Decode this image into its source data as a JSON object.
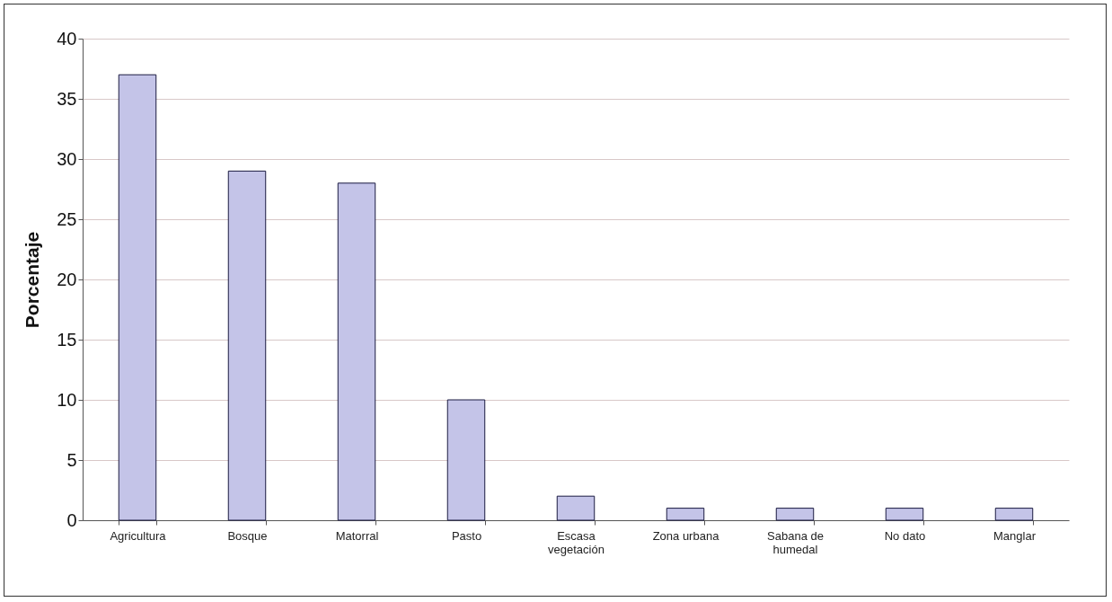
{
  "chart_data": {
    "type": "bar",
    "ylabel": "Porcentaje",
    "categories": [
      "Agricultura",
      "Bosque",
      "Matorral",
      "Pasto",
      "Escasa vegetación",
      "Zona urbana",
      "Sabana de humedal",
      "No dato",
      "Manglar"
    ],
    "values": [
      37,
      29,
      28,
      10,
      2,
      1,
      1,
      1,
      1
    ],
    "color": "#c4c4e8",
    "ylim": [
      0,
      40
    ],
    "yticks": [
      0,
      5,
      10,
      15,
      20,
      25,
      30,
      35,
      40
    ],
    "grid": "y"
  }
}
